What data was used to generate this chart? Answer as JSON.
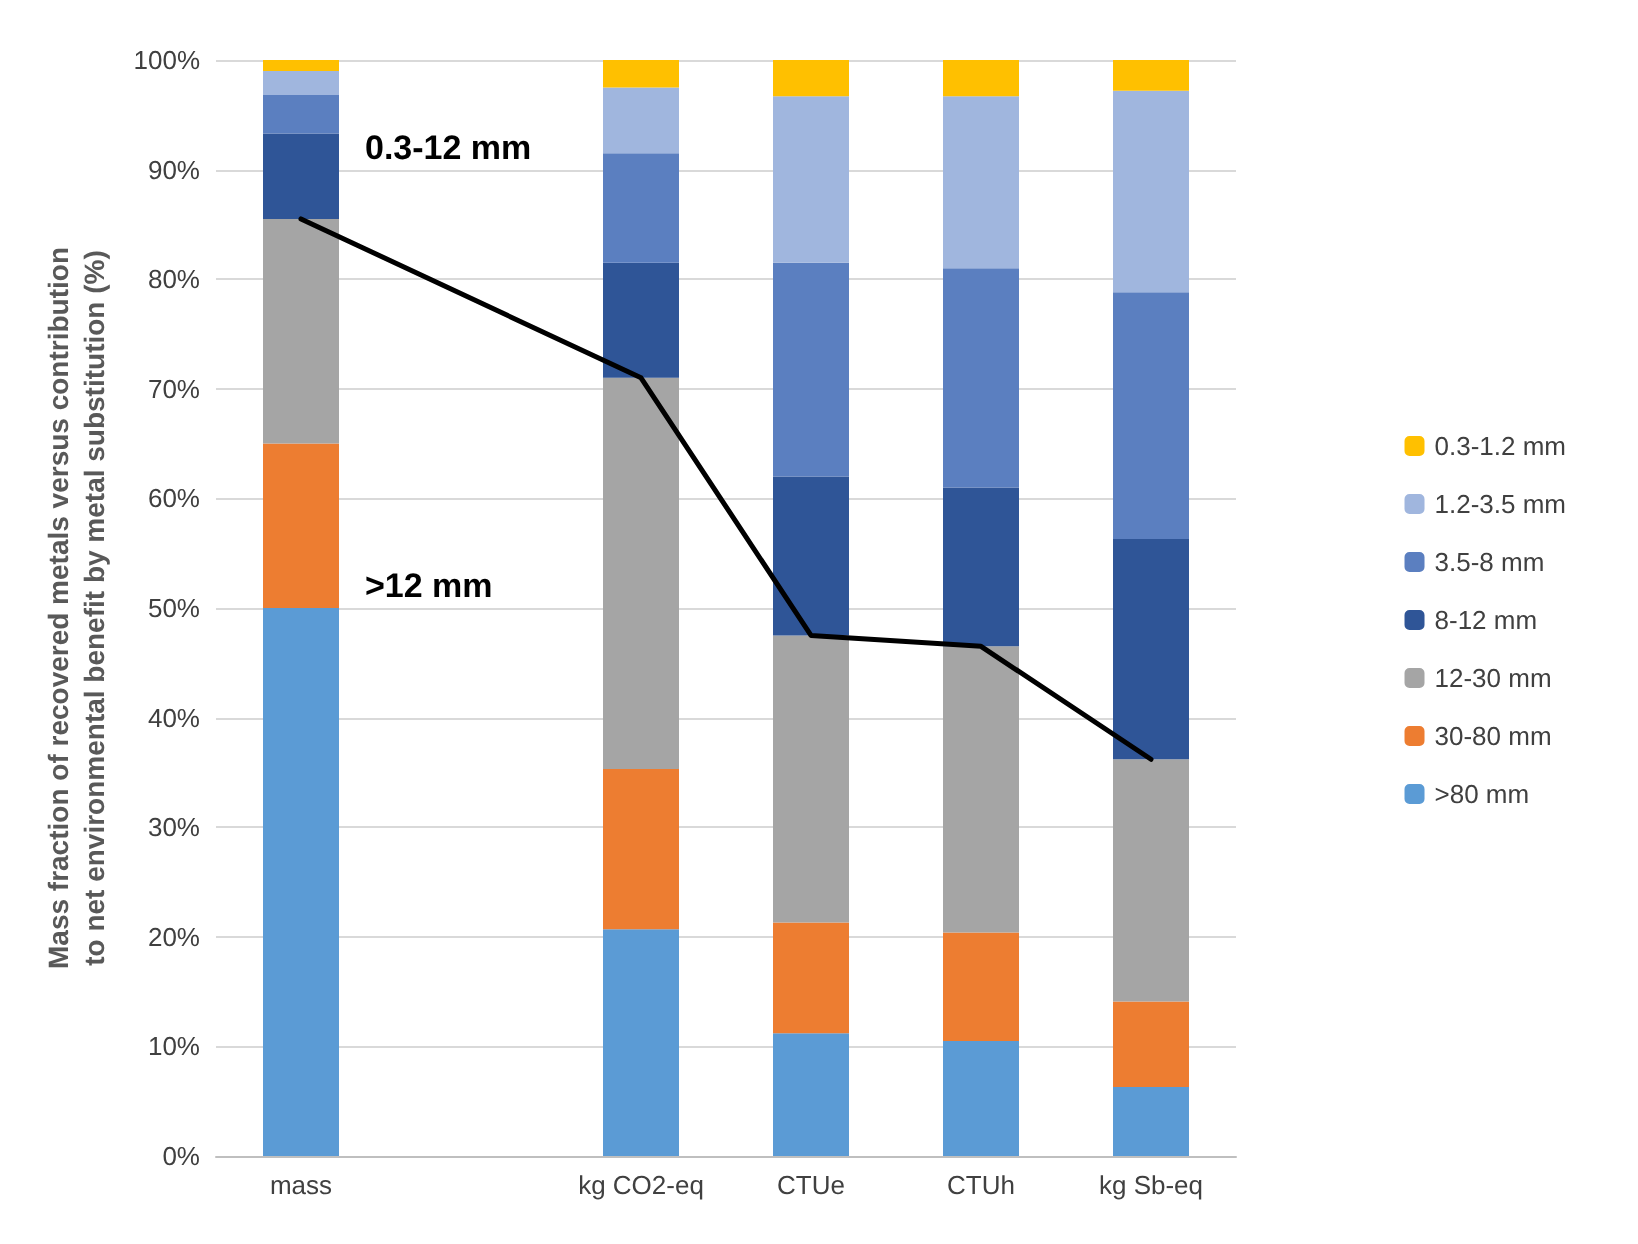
{
  "chart_data": {
    "type": "bar",
    "stacked": true,
    "ylabel": "Mass fraction of recovered metals versus contribution to net environmental benefit by metal substitution (%)",
    "categories": [
      "mass",
      null,
      "kg CO2-eq",
      "CTUe",
      "CTUh",
      "kg Sb-eq"
    ],
    "series": [
      {
        "name": ">80 mm",
        "color": "#5b9bd5",
        "values": [
          50,
          null,
          20.7,
          11.2,
          10.5,
          6.3
        ]
      },
      {
        "name": "30-80 mm",
        "color": "#ed7d31",
        "values": [
          15,
          null,
          14.6,
          10.1,
          9.9,
          7.8
        ]
      },
      {
        "name": "12-30 mm",
        "color": "#a5a5a5",
        "values": [
          20.5,
          null,
          35.7,
          26.2,
          26.1,
          22.1
        ]
      },
      {
        "name": "8-12 mm",
        "color": "#2f5597",
        "values": [
          7.8,
          null,
          10.5,
          14.5,
          14.5,
          20.1
        ]
      },
      {
        "name": "3.5-8 mm",
        "color": "#5b7fc0",
        "values": [
          3.5,
          null,
          10,
          19.5,
          20,
          22.5
        ]
      },
      {
        "name": "1.2-3.5 mm",
        "color": "#a0b6de",
        "values": [
          2.2,
          null,
          6,
          15.2,
          15.7,
          18.4
        ]
      },
      {
        "name": "0.3-1.2 mm",
        "color": "#ffc000",
        "values": [
          1,
          null,
          2.5,
          3.3,
          3.3,
          2.8
        ]
      },
      {
        "type": "line",
        "color": "#000000",
        "values": [
          85.5,
          null,
          71,
          47.5,
          46.5,
          36.2
        ]
      }
    ],
    "ylim": [
      0,
      100
    ],
    "yticks": [
      {
        "value": 0,
        "label": "0%"
      },
      {
        "value": 10,
        "label": "10%"
      },
      {
        "value": 20,
        "label": "20%"
      },
      {
        "value": 30,
        "label": "30%"
      },
      {
        "value": 40,
        "label": "40%"
      },
      {
        "value": 50,
        "label": "50%"
      },
      {
        "value": 60,
        "label": "60%"
      },
      {
        "value": 70,
        "label": "70%"
      },
      {
        "value": 80,
        "label": "80%"
      },
      {
        "value": 90,
        "label": "90%"
      },
      {
        "value": 100,
        "label": "100%"
      }
    ],
    "annotations": [
      "0.3-12 mm",
      ">12 mm"
    ],
    "grid": "y",
    "legend": "right",
    "marker": "none",
    "line_style": "solid"
  }
}
